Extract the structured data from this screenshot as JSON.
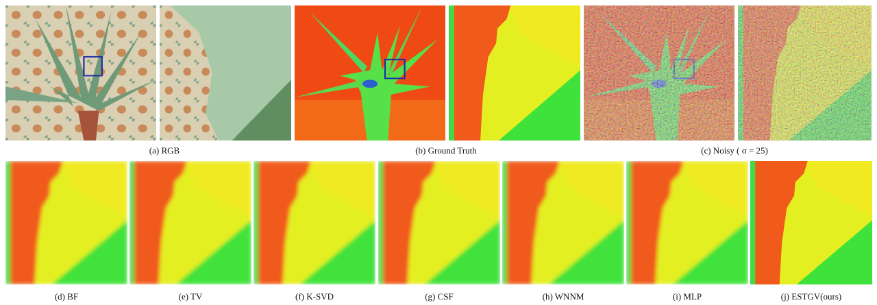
{
  "figure": {
    "top_captions": [
      "(a) RGB",
      "(b) Ground Truth",
      "(c) Noisy ( σ = 25)"
    ],
    "bottom_captions": [
      "(d) BF",
      "(e) TV",
      "(f) K-SVD",
      "(g) CSF",
      "(h) WNNM",
      "(i) MLP",
      "(j) ESTGV(ours)"
    ]
  }
}
